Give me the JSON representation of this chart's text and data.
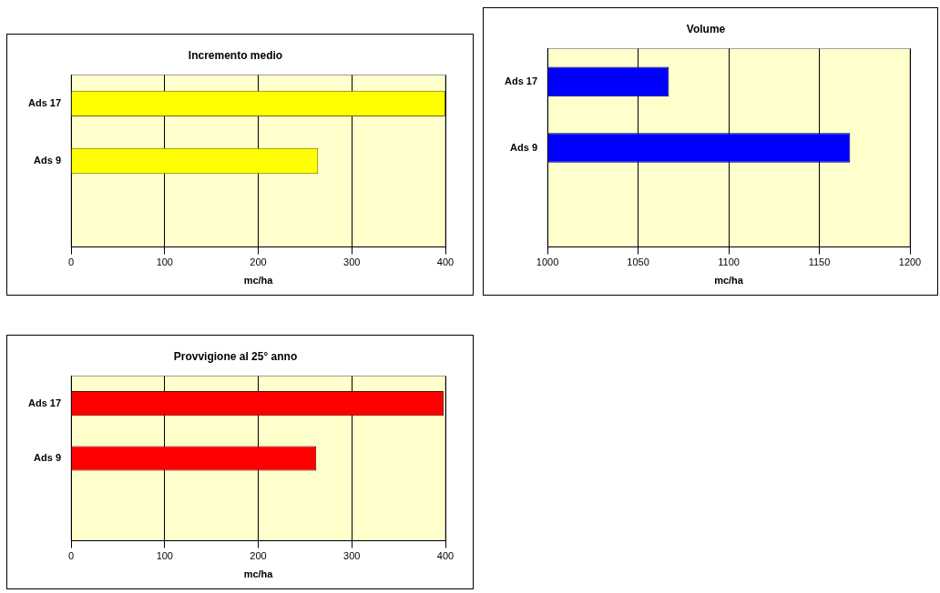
{
  "chart_data": [
    {
      "type": "bar",
      "orientation": "horizontal",
      "title": "Incremento medio",
      "xlabel": "mc/ha",
      "categories": [
        "Ads 17",
        "Ads 9",
        null
      ],
      "values": [
        400,
        264,
        null
      ],
      "color": "#ffff00",
      "xlim": [
        0,
        400
      ],
      "xticks": [
        0,
        100,
        200,
        300,
        400
      ],
      "grid": "x"
    },
    {
      "type": "bar",
      "orientation": "horizontal",
      "title": "Volume",
      "xlabel": "mc/ha",
      "categories": [
        "Ads 17",
        "Ads 9",
        null
      ],
      "values": [
        1067,
        1167,
        null
      ],
      "color": "#0000ff",
      "xlim": [
        1000,
        1200
      ],
      "xticks": [
        1000,
        1050,
        1100,
        1150,
        1200
      ],
      "grid": "x"
    },
    {
      "type": "bar",
      "orientation": "horizontal",
      "title": "Provvigione al 25° anno",
      "xlabel": "mc/ha",
      "categories": [
        "Ads 17",
        "Ads 9",
        null
      ],
      "values": [
        398,
        262,
        null
      ],
      "color": "#ff0000",
      "xlim": [
        0,
        400
      ],
      "xticks": [
        0,
        100,
        200,
        300,
        400
      ],
      "grid": "x"
    }
  ]
}
